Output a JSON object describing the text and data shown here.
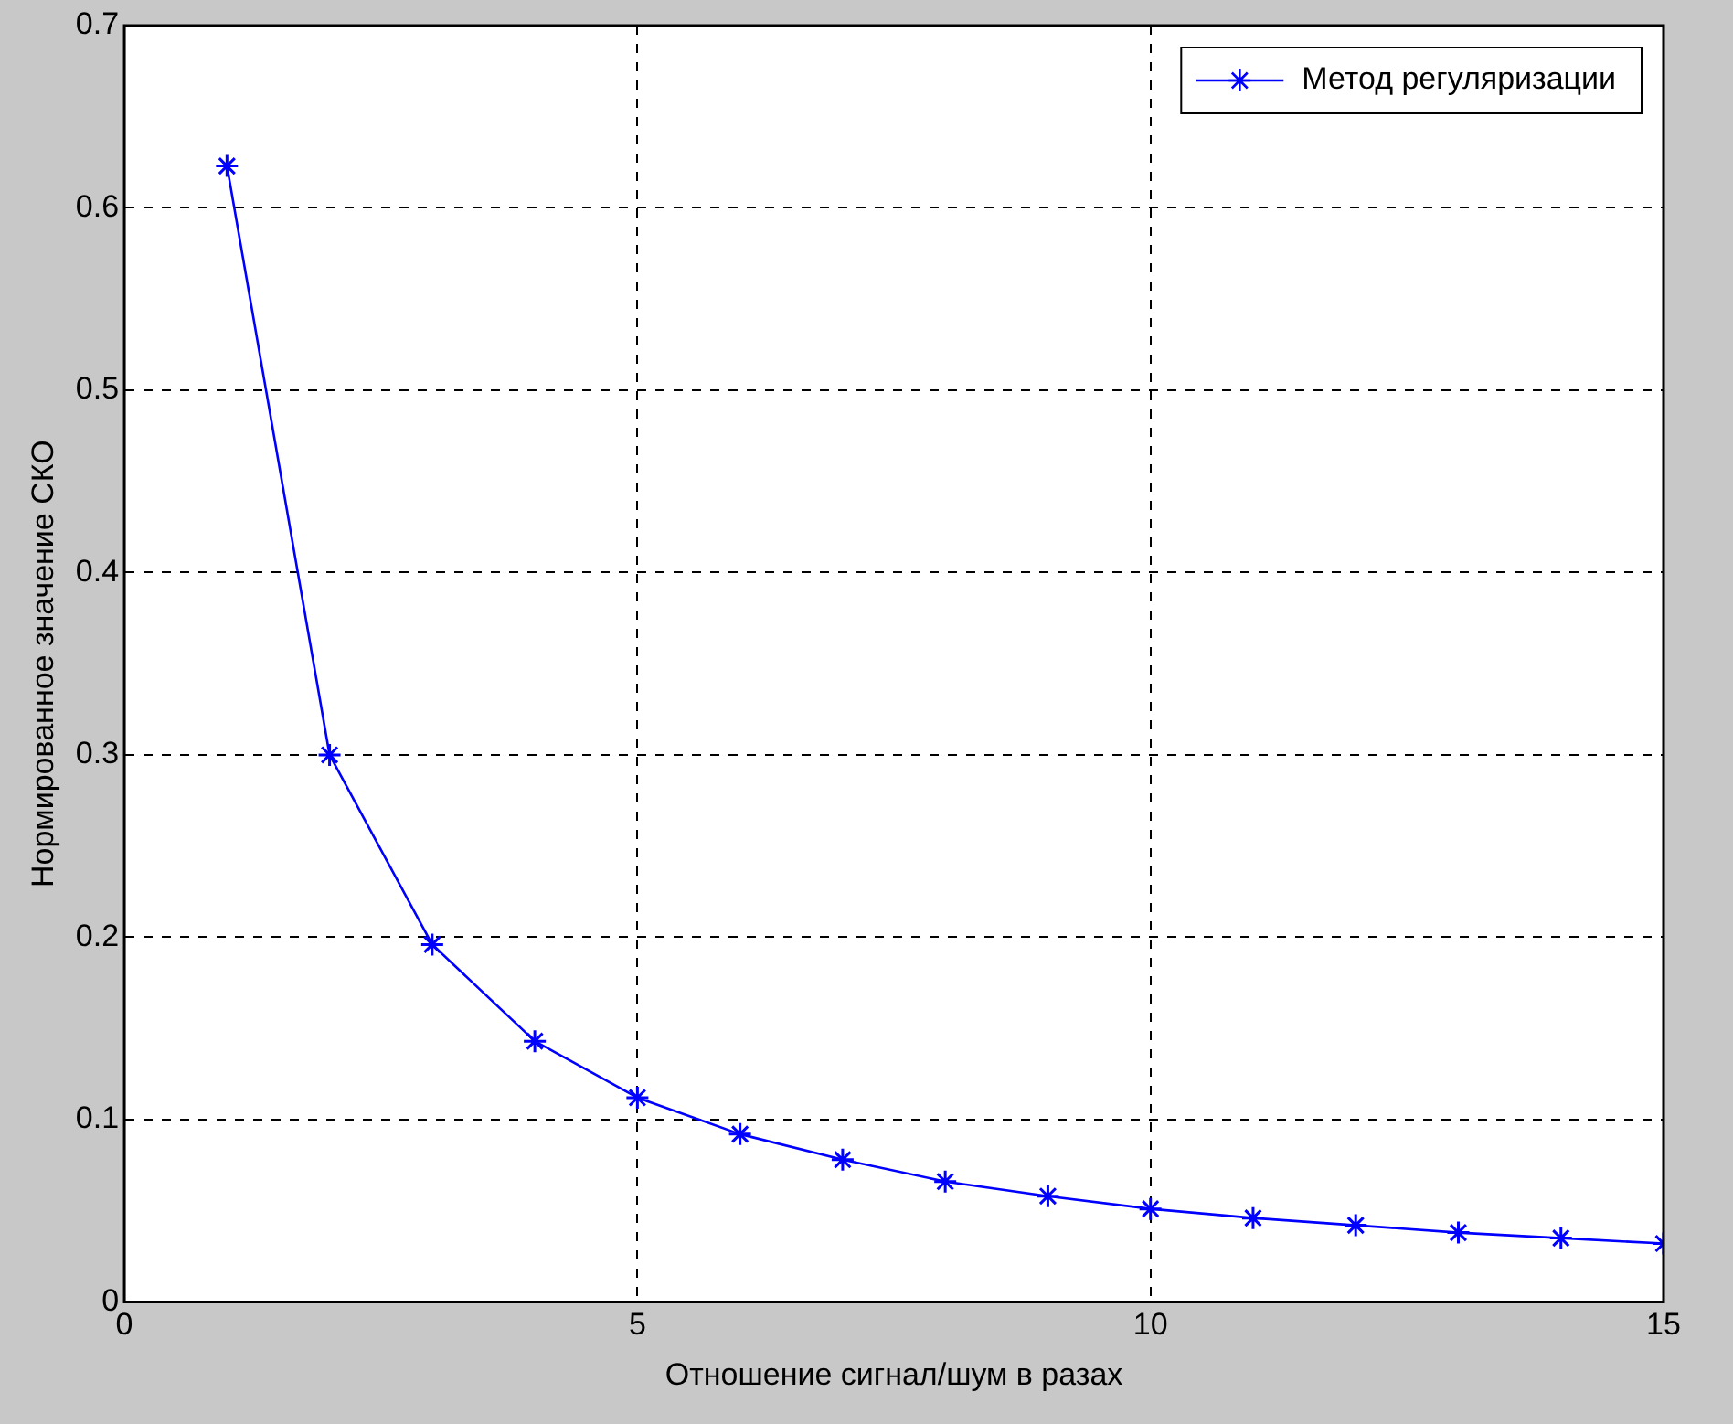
{
  "chart_data": {
    "type": "line",
    "xlabel": "Отношение сигнал/шум в разах",
    "ylabel": "Нормированное значение СКО",
    "x": [
      1,
      2,
      3,
      4,
      5,
      6,
      7,
      8,
      9,
      10,
      11,
      12,
      13,
      14,
      15
    ],
    "series": [
      {
        "name": "Метод регуляризации",
        "color": "#0000ff",
        "values": [
          0.623,
          0.3,
          0.196,
          0.143,
          0.112,
          0.092,
          0.078,
          0.066,
          0.058,
          0.051,
          0.046,
          0.042,
          0.038,
          0.035,
          0.032
        ]
      }
    ],
    "xlim": [
      0,
      15
    ],
    "xticks": [
      0,
      5,
      10,
      15
    ],
    "ylim": [
      0,
      0.7
    ],
    "yticks": [
      0,
      0.1,
      0.2,
      0.3,
      0.4,
      0.5,
      0.6,
      0.7
    ],
    "grid": true,
    "legend": "top right",
    "marker": "cross",
    "line_style": "solid"
  }
}
